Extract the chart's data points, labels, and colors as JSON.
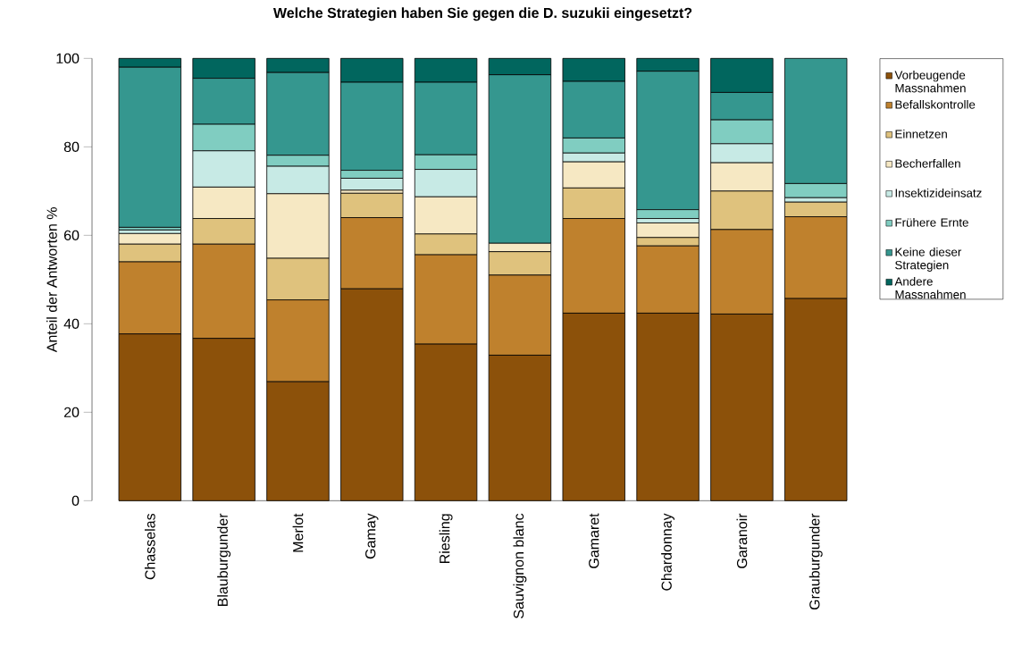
{
  "chart_data": {
    "type": "bar",
    "stacked": true,
    "title": "Welche Strategien haben Sie gegen die D. suzukii eingesetzt?",
    "ylabel": "Anteil der Antworten %",
    "categories": [
      "Chasselas",
      "Blauburgunder",
      "Merlot",
      "Gamay",
      "Riesling",
      "Sauvignon blanc",
      "Gamaret",
      "Chardonnay",
      "Garanoir",
      "Grauburgunder"
    ],
    "ylim": [
      0,
      100
    ],
    "yticks": [
      0,
      20,
      40,
      60,
      80,
      100
    ],
    "legend": "right",
    "series": [
      {
        "name": "Vorbeugende Massnahmen",
        "color": "#8c510a",
        "values": [
          37.7,
          36.7,
          26.9,
          47.9,
          35.4,
          32.9,
          42.4,
          42.4,
          42.2,
          45.7
        ]
      },
      {
        "name": "Befallskontrolle",
        "color": "#bf812d",
        "values": [
          16.3,
          21.3,
          18.5,
          16.1,
          20.2,
          18.1,
          21.4,
          15.2,
          19.1,
          18.5
        ]
      },
      {
        "name": "Einnetzen",
        "color": "#dfc27d",
        "values": [
          4.0,
          5.8,
          9.4,
          5.5,
          4.7,
          5.3,
          6.9,
          1.9,
          8.7,
          3.3
        ]
      },
      {
        "name": "Becherfallen",
        "color": "#f6e8c3",
        "values": [
          2.4,
          7.1,
          14.6,
          0.7,
          8.4,
          1.9,
          5.9,
          3.3,
          6.4,
          0
        ]
      },
      {
        "name": "Insektizideinsatz",
        "color": "#c7eae5",
        "values": [
          0.8,
          8.2,
          6.2,
          2.7,
          6.2,
          0,
          2.0,
          1.0,
          4.3,
          1.0
        ]
      },
      {
        "name": "Frühere Ernte",
        "color": "#80cdc1",
        "values": [
          0.6,
          6.0,
          2.5,
          1.8,
          3.3,
          0,
          3.4,
          2.0,
          5.4,
          3.2
        ]
      },
      {
        "name": "Keine dieser Strategien",
        "color": "#35978f",
        "values": [
          36.2,
          10.4,
          18.7,
          19.9,
          16.4,
          38.1,
          12.8,
          31.3,
          6.2,
          28.3
        ]
      },
      {
        "name": "Andere Massnahmen",
        "color": "#01665e",
        "values": [
          2.0,
          4.5,
          3.2,
          5.4,
          5.4,
          3.7,
          5.2,
          2.9,
          7.7,
          0
        ]
      }
    ]
  }
}
